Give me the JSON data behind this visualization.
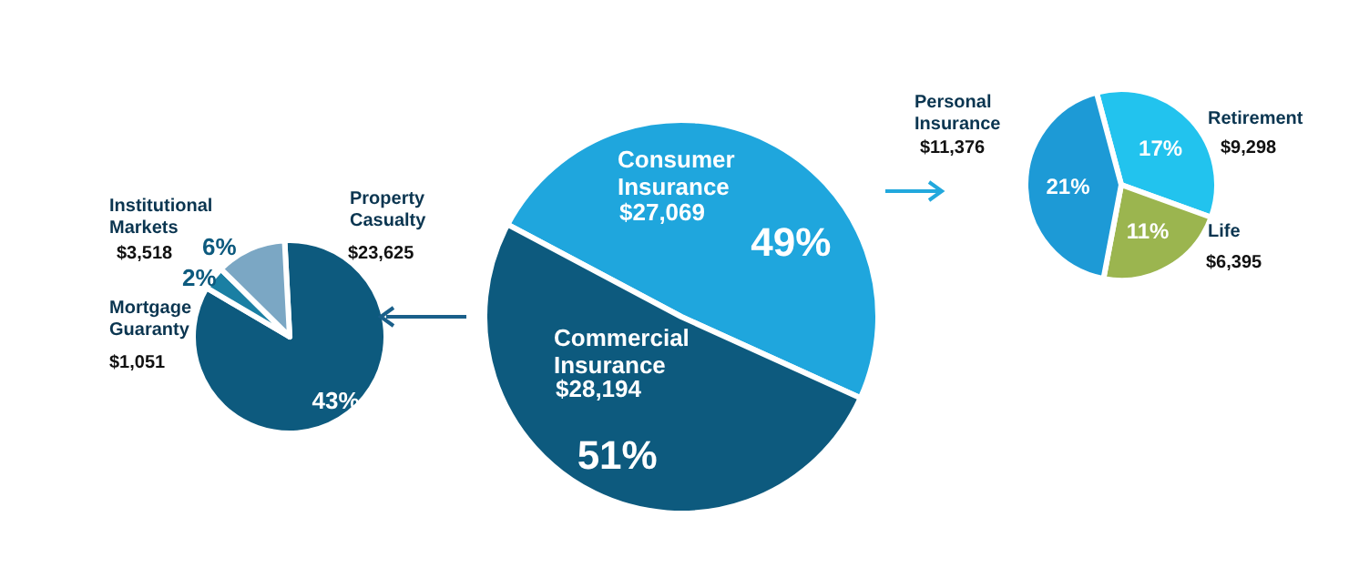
{
  "chart_data": [
    {
      "type": "pie",
      "categories": [
        "Property Casualty",
        "Mortgage Guaranty",
        "Institutional Markets"
      ],
      "values": [
        43,
        2,
        6
      ],
      "value_labels": [
        "43%",
        "2%",
        "6%"
      ],
      "colors": [
        "#0d5a7e",
        "#1a7fa3",
        "#7ba7c4"
      ],
      "annotations": [
        "$23,625",
        "$1,051",
        "$3,518"
      ],
      "legend": false
    },
    {
      "type": "pie",
      "categories": [
        "Consumer Insurance",
        "Commercial Insurance"
      ],
      "values": [
        49,
        51
      ],
      "value_labels": [
        "49%",
        "51%"
      ],
      "colors": [
        "#1fa6dd",
        "#0d5a7e"
      ],
      "annotations": [
        "$27,069",
        "$28,194"
      ],
      "legend": false
    },
    {
      "type": "pie",
      "categories": [
        "Retirement",
        "Life",
        "Personal Insurance"
      ],
      "values": [
        17,
        11,
        21
      ],
      "value_labels": [
        "17%",
        "11%",
        "21%"
      ],
      "colors": [
        "#22c3ee",
        "#9bb54f",
        "#1d9ad6"
      ],
      "annotations": [
        "$9,298",
        "$6,395",
        "$11,376"
      ],
      "legend": false
    }
  ]
}
